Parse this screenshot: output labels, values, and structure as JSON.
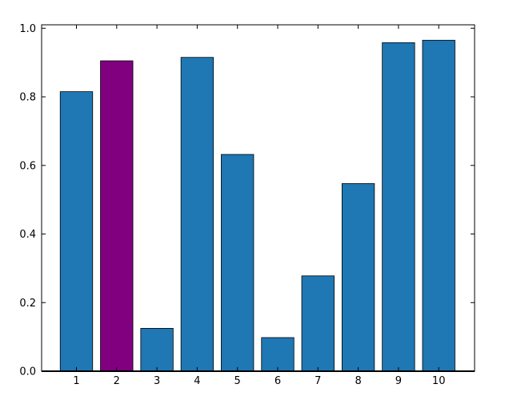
{
  "chart_data": {
    "type": "bar",
    "categories": [
      "1",
      "2",
      "3",
      "4",
      "5",
      "6",
      "7",
      "8",
      "9",
      "10"
    ],
    "values": [
      0.815,
      0.905,
      0.125,
      0.915,
      0.632,
      0.098,
      0.278,
      0.547,
      0.958,
      0.965
    ],
    "ylim": [
      0,
      1.01
    ],
    "yticks": [
      "0.0",
      "0.2",
      "0.4",
      "0.6",
      "0.8",
      "1.0"
    ],
    "grid": false,
    "colors": {
      "default": "#1f77b4",
      "highlight": "#800080",
      "edge": "#000000"
    },
    "highlight_index": 1
  }
}
